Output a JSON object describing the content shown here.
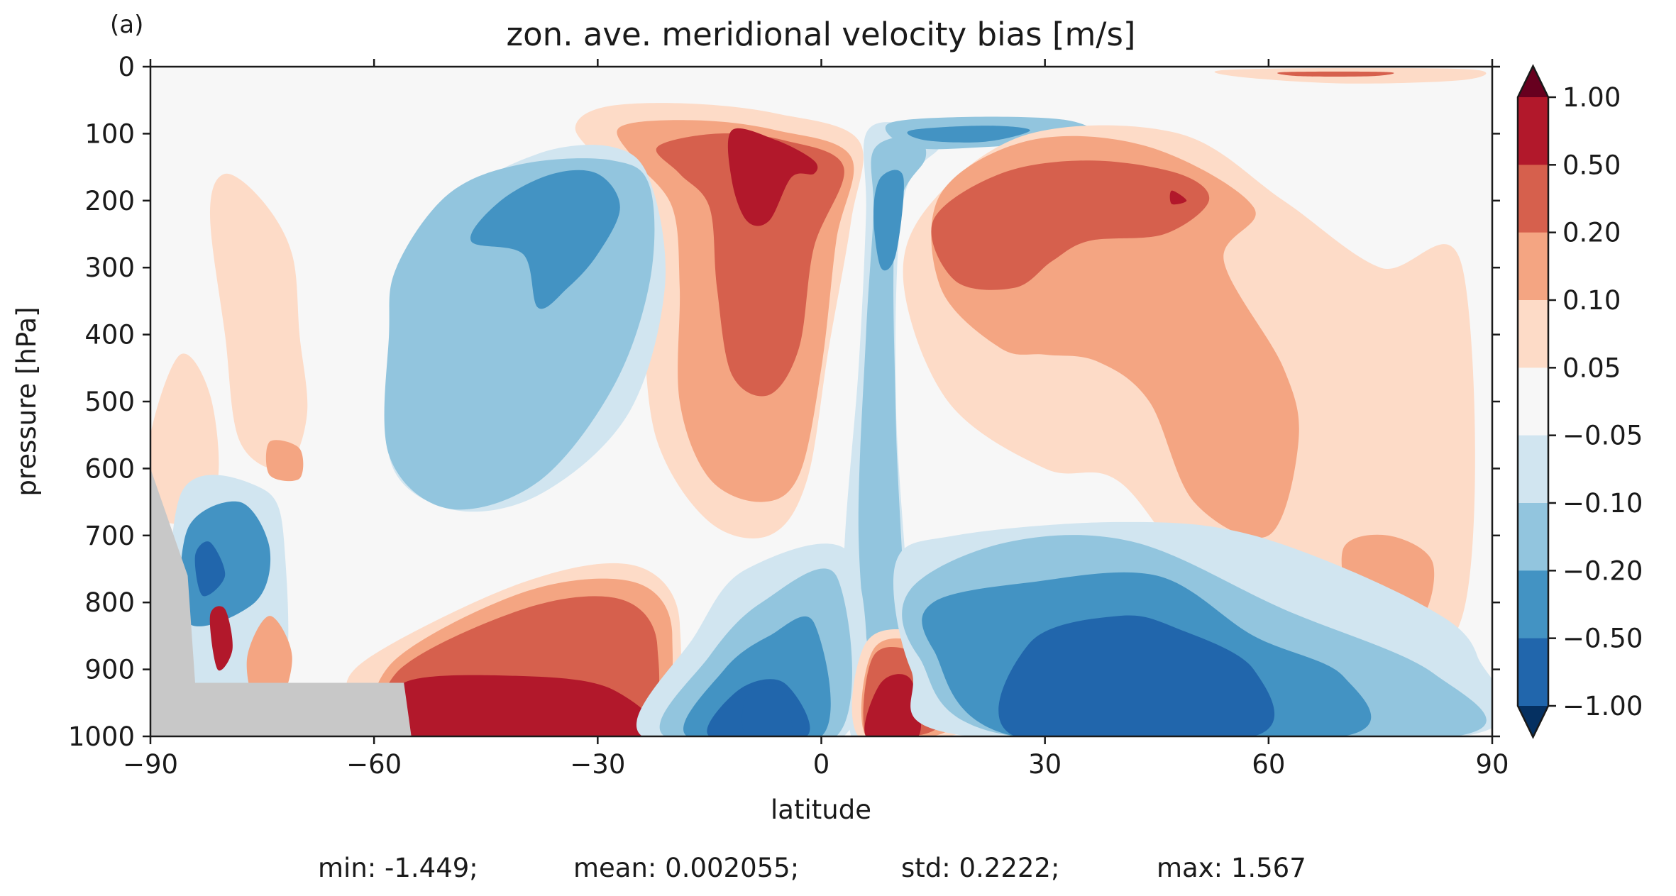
{
  "chart_data": {
    "type": "heatmap",
    "panel_label": "(a)",
    "title": "zon. ave. meridional velocity bias [m/s]",
    "xlabel": "latitude",
    "ylabel": "pressure [hPa]",
    "x_range": [
      -90,
      90
    ],
    "y_range": [
      0,
      1000
    ],
    "y_inverted": true,
    "x_ticks": [
      -90,
      -60,
      -30,
      0,
      30,
      60,
      90
    ],
    "x_tick_labels": [
      "−90",
      "−60",
      "−30",
      "0",
      "30",
      "60",
      "90"
    ],
    "y_ticks": [
      0,
      100,
      200,
      300,
      400,
      500,
      600,
      700,
      800,
      900,
      1000
    ],
    "y_tick_labels": [
      "0",
      "100",
      "200",
      "300",
      "400",
      "500",
      "600",
      "700",
      "800",
      "900",
      "1000"
    ],
    "colorbar": {
      "levels": [
        1.0,
        0.5,
        0.2,
        0.1,
        0.05,
        -0.05,
        -0.1,
        -0.2,
        -0.5,
        -1.0
      ],
      "labels": [
        "1.00",
        "0.50",
        "0.20",
        "0.10",
        "0.05",
        "−0.05",
        "−0.10",
        "−0.20",
        "−0.50",
        "−1.00"
      ],
      "colors": [
        "#b2182b",
        "#d6604d",
        "#f4a582",
        "#fddbc7",
        "#f7f7f7",
        "#d1e5f0",
        "#92c5de",
        "#4393c3",
        "#2166ac"
      ],
      "over_color": "#67001f",
      "under_color": "#053061",
      "extend": "both"
    },
    "masked_color": "#c8c8c8",
    "contour_fields": [
      {
        "name": "NH upper-tropospheric positive lobe",
        "sign": "positive",
        "level_index": 3,
        "lat": [
          -30,
          0,
          70
        ],
        "p": [
          110,
          700
        ]
      },
      {
        "name": "NH upper-tropospheric positive lobe",
        "sign": "positive",
        "level_index": 2,
        "lat": [
          -27,
          0,
          52
        ],
        "p": [
          120,
          620
        ]
      },
      {
        "name": "NH upper-tropospheric positive lobe",
        "sign": "positive",
        "level_index": 1,
        "lat": [
          -22,
          0,
          50
        ],
        "p": [
          130,
          490
        ]
      },
      {
        "name": "upper-tropospheric maximum",
        "sign": "positive",
        "level_index": 0,
        "lat": [
          -13,
          1
        ],
        "p": [
          95,
          230
        ]
      },
      {
        "name": "SH upper-tropospheric negative lobe",
        "sign": "negative",
        "level_index": 5,
        "lat": [
          -55,
          -25
        ],
        "p": [
          130,
          620
        ]
      },
      {
        "name": "SH upper-tropospheric negative lobe",
        "sign": "negative",
        "level_index": 6,
        "lat": [
          -58,
          -23
        ],
        "p": [
          150,
          600
        ]
      },
      {
        "name": "SH upper-tropospheric negative lobe",
        "sign": "negative",
        "level_index": 7,
        "lat": [
          -48,
          -27
        ],
        "p": [
          160,
          370
        ]
      },
      {
        "name": "SH near-surface positive band",
        "sign": "positive",
        "level_index": 0,
        "lat": [
          -55,
          -20
        ],
        "p": [
          920,
          1000
        ]
      },
      {
        "name": "equatorial near-surface negative core",
        "sign": "negative",
        "level_index": 8,
        "lat": [
          -16,
          -2
        ],
        "p": [
          840,
          1000
        ]
      },
      {
        "name": "NH near-surface positive core",
        "sign": "positive",
        "level_index": 0,
        "lat": [
          5,
          13
        ],
        "p": [
          880,
          1000
        ]
      },
      {
        "name": "NH lower-tropospheric negative band",
        "sign": "negative",
        "level_index": 7,
        "lat": [
          15,
          58
        ],
        "p": [
          770,
          1000
        ]
      }
    ]
  },
  "stats": {
    "min": "min: -1.449;",
    "mean": "mean: 0.002055;",
    "std": "std: 0.2222;",
    "max": "max: 1.567"
  }
}
